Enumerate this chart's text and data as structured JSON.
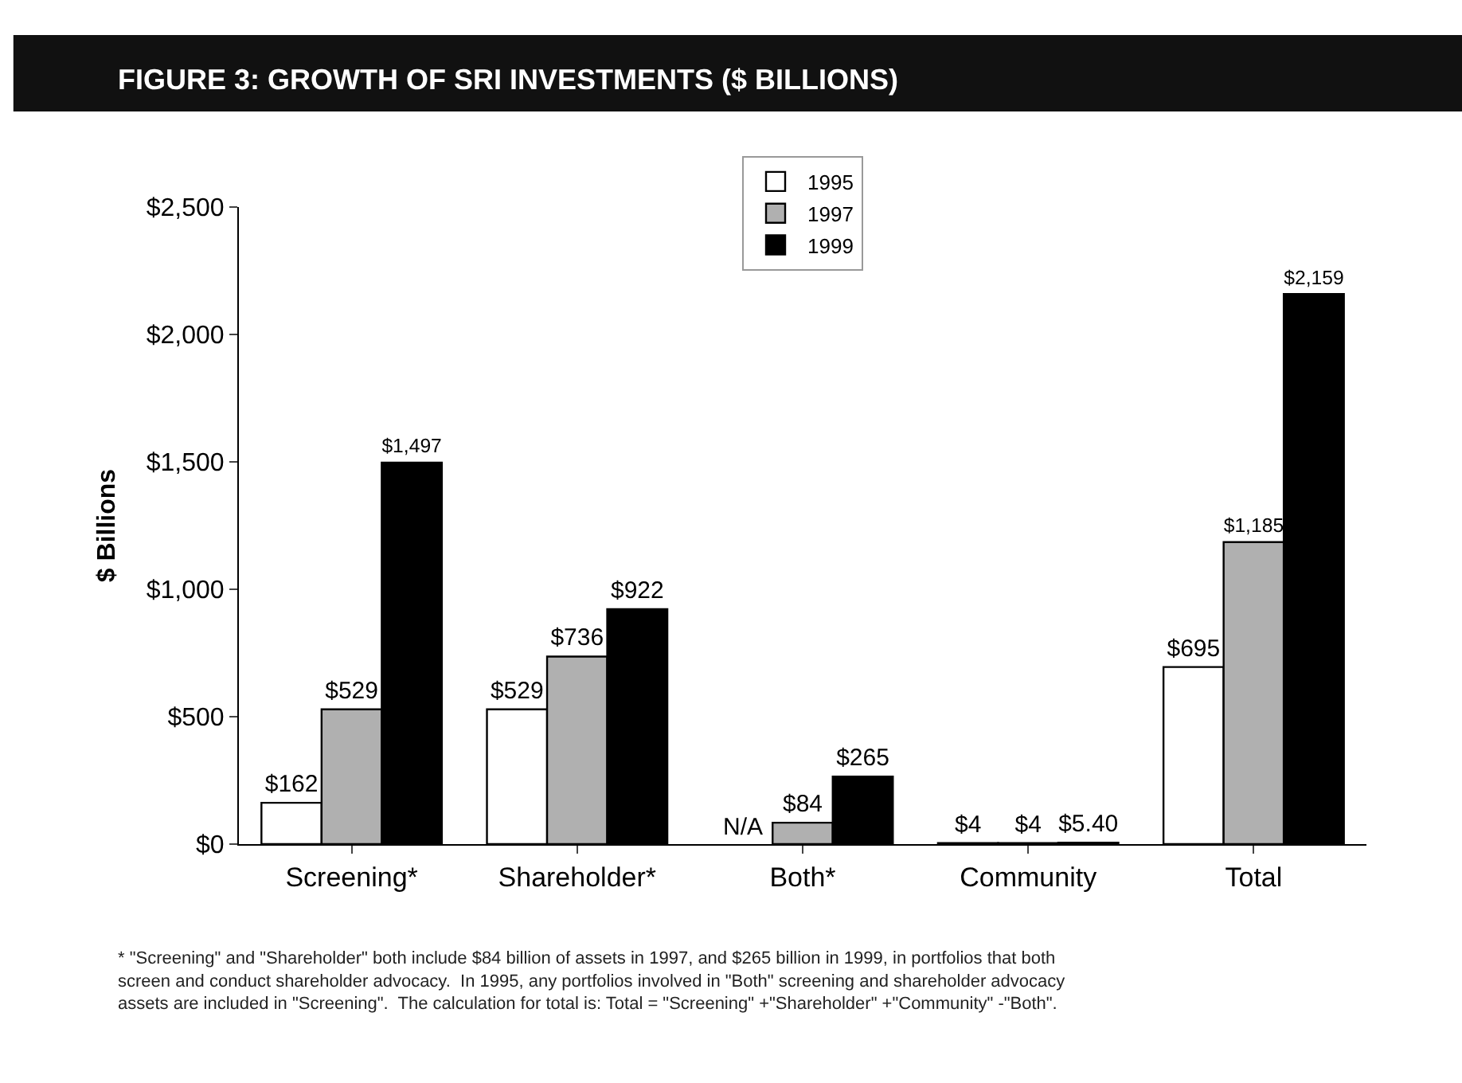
{
  "chart_data": {
    "type": "bar",
    "title": "FIGURE 3: GROWTH OF SRI INVESTMENTS ($ BILLIONS)",
    "ylabel": "$ Billions",
    "categories": [
      "Screening*",
      "Shareholder*",
      "Both*",
      "Community",
      "Total"
    ],
    "series": [
      {
        "name": "1995",
        "color": "#ffffff",
        "values": [
          162,
          529,
          null,
          4,
          695
        ],
        "value_labels": [
          "$162",
          "$529",
          "N/A",
          "$4",
          "$695"
        ]
      },
      {
        "name": "1997",
        "color": "#b0b0b0",
        "values": [
          529,
          736,
          84,
          4,
          1185
        ],
        "value_labels": [
          "$529",
          "$736",
          "$84",
          "$4",
          "$1,185"
        ]
      },
      {
        "name": "1999",
        "color": "#000000",
        "values": [
          1497,
          922,
          265,
          5.4,
          2159
        ],
        "value_labels": [
          "$1,497",
          "$922",
          "$265",
          "$5.40",
          "$2,159"
        ]
      }
    ],
    "ylim": [
      0,
      2500
    ],
    "yticks": [
      {
        "value": 0,
        "label": "$0"
      },
      {
        "value": 500,
        "label": "$500"
      },
      {
        "value": 1000,
        "label": "$1,000"
      },
      {
        "value": 1500,
        "label": "$1,500"
      },
      {
        "value": 2000,
        "label": "$2,000"
      },
      {
        "value": 2500,
        "label": "$2,500"
      }
    ],
    "grid": false,
    "legend": "top",
    "annotations": [
      "* \"Screening\" and \"Shareholder\" both include $84 billion of assets in 1997, and $265 billion in 1999, in portfolios that both screen and conduct shareholder advocacy.  In 1995, any portfolios involved in \"Both\" screening and shareholder advocacy assets are included in \"Screening\".  The calculation for total is: Total = \"Screening\" +\"Shareholder\" +\"Community\" -\"Both\"."
    ]
  }
}
